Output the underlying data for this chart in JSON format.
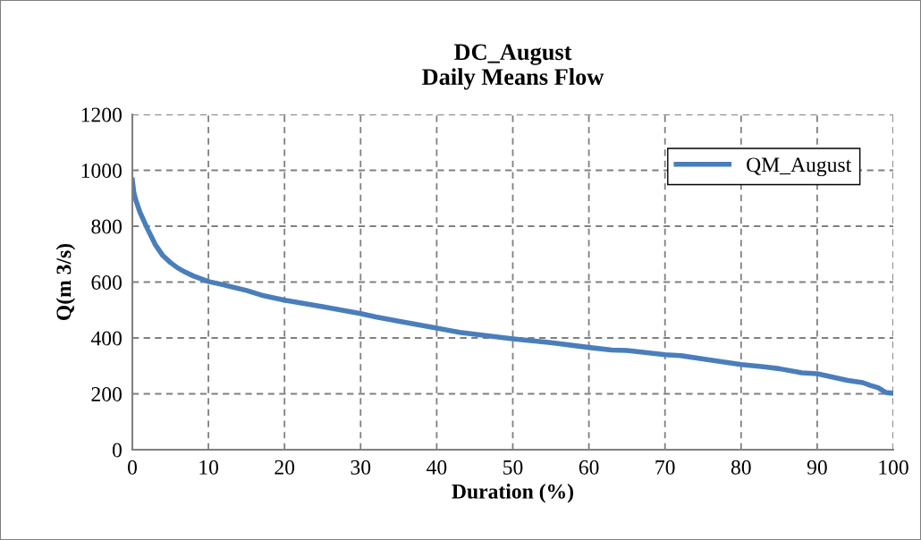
{
  "chart_data": {
    "type": "line",
    "title": "DC_August\nDaily Means Flow",
    "xlabel": "Duration (%)",
    "ylabel": "Q(m 3/s)",
    "x": [
      0,
      0.2,
      0.5,
      1,
      2,
      3,
      4,
      5,
      6,
      7,
      8,
      10,
      12,
      15,
      17,
      20,
      25,
      30,
      32,
      35,
      40,
      43,
      50,
      55,
      60,
      63,
      65,
      70,
      72,
      75,
      80,
      83,
      85,
      88,
      90,
      92,
      94,
      96,
      97,
      98,
      99,
      100
    ],
    "series": [
      {
        "name": "QM_August",
        "color": "#4a7ebb",
        "values": [
          965,
          920,
          890,
          850,
          790,
          735,
          695,
          670,
          650,
          635,
          622,
          602,
          590,
          570,
          553,
          535,
          512,
          487,
          475,
          460,
          435,
          420,
          397,
          383,
          366,
          357,
          355,
          340,
          337,
          325,
          305,
          297,
          290,
          275,
          272,
          260,
          248,
          240,
          230,
          222,
          205,
          202
        ]
      }
    ],
    "xlim": [
      0,
      100
    ],
    "xticks": [
      0,
      10,
      20,
      30,
      40,
      50,
      60,
      70,
      80,
      90,
      100
    ],
    "ylim": [
      0,
      1200
    ],
    "yticks": [
      0,
      200,
      400,
      600,
      800,
      1000,
      1200
    ],
    "grid": true,
    "legend": "top right",
    "marker": "none",
    "line_style": "solid"
  }
}
